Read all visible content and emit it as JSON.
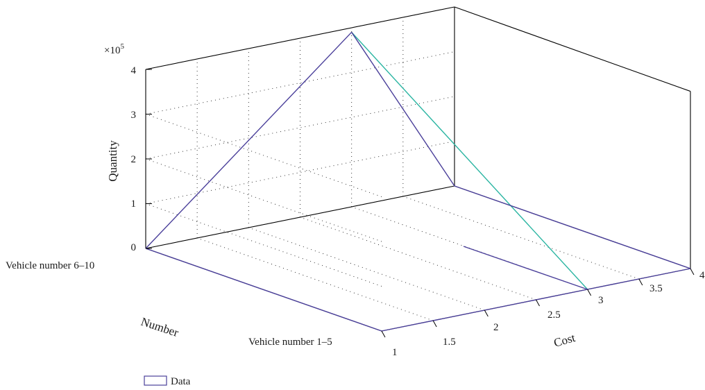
{
  "chart_data": {
    "type": "3d-surface",
    "title": "",
    "xlabel": "Cost",
    "ylabel": "Number",
    "zlabel": "Quantity",
    "z_exponent_label": "×10",
    "z_exponent_power": "5",
    "x_ticks": [
      "1",
      "1.5",
      "2",
      "2.5",
      "3",
      "3.5",
      "4"
    ],
    "y_ticks": [
      "Vehicle number 1–5",
      "Vehicle number 6–10"
    ],
    "z_ticks": [
      "0",
      "1",
      "2",
      "3",
      "4"
    ],
    "xlim": [
      1,
      4
    ],
    "zlim": [
      0,
      400000
    ],
    "grid": true,
    "legend": {
      "position": "bottom-left",
      "entries": [
        "Data"
      ]
    },
    "colors": {
      "surface_edge": "#4a3f9a",
      "surface_ridge": "#2bb5a2",
      "axis": "#000000"
    },
    "surface": [
      {
        "cost": 1,
        "number_index": 0,
        "quantity": 0
      },
      {
        "cost": 1,
        "number_index": 1,
        "quantity": 0
      },
      {
        "cost": 3,
        "number_index": 0,
        "quantity": 0
      },
      {
        "cost": 3,
        "number_index": 1,
        "quantity": 390000
      },
      {
        "cost": 4,
        "number_index": 0,
        "quantity": 0
      },
      {
        "cost": 4,
        "number_index": 1,
        "quantity": 0
      }
    ]
  }
}
